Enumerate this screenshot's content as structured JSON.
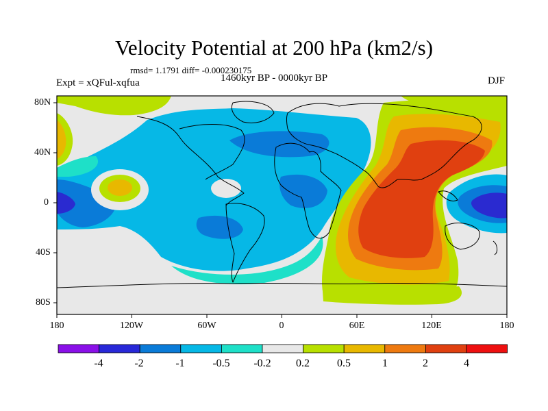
{
  "title": "Velocity Potential at 200 hPa (km2/s)",
  "stats": "rmsd= 1.1791 diff= -0.000230175",
  "experiment": "Expt = xQFul-xqfua",
  "period": "1460kyr BP - 0000kyr BP",
  "season": "DJF",
  "lon_labels": [
    "180",
    "120W",
    "60W",
    "0",
    "60E",
    "120E",
    "180"
  ],
  "lat_labels": [
    "80N",
    "40N",
    "0",
    "40S",
    "80S"
  ],
  "colorbar": {
    "colors": [
      "#8a10e8",
      "#2828d8",
      "#0a7bd8",
      "#06b8e6",
      "#1ee0c8",
      "#e8e8e8",
      "#b8e000",
      "#e8b800",
      "#ee7a10",
      "#e04010",
      "#ee1010"
    ],
    "labels": [
      "-4",
      "-2",
      "-1",
      "-0.5",
      "-0.2",
      "0.2",
      "0.5",
      "1",
      "2",
      "4"
    ]
  },
  "palette": {
    "neg_deep": "#2a2ad0",
    "neg_mid": "#0a7bd8",
    "neg_light": "#06b8e6",
    "neg_weak": "#1ee0c8",
    "neutral": "#e8e8e8",
    "pos_weak": "#b8e000",
    "pos_light": "#e8b800",
    "pos_mid": "#ee7a10",
    "pos_deep": "#e04010"
  }
}
